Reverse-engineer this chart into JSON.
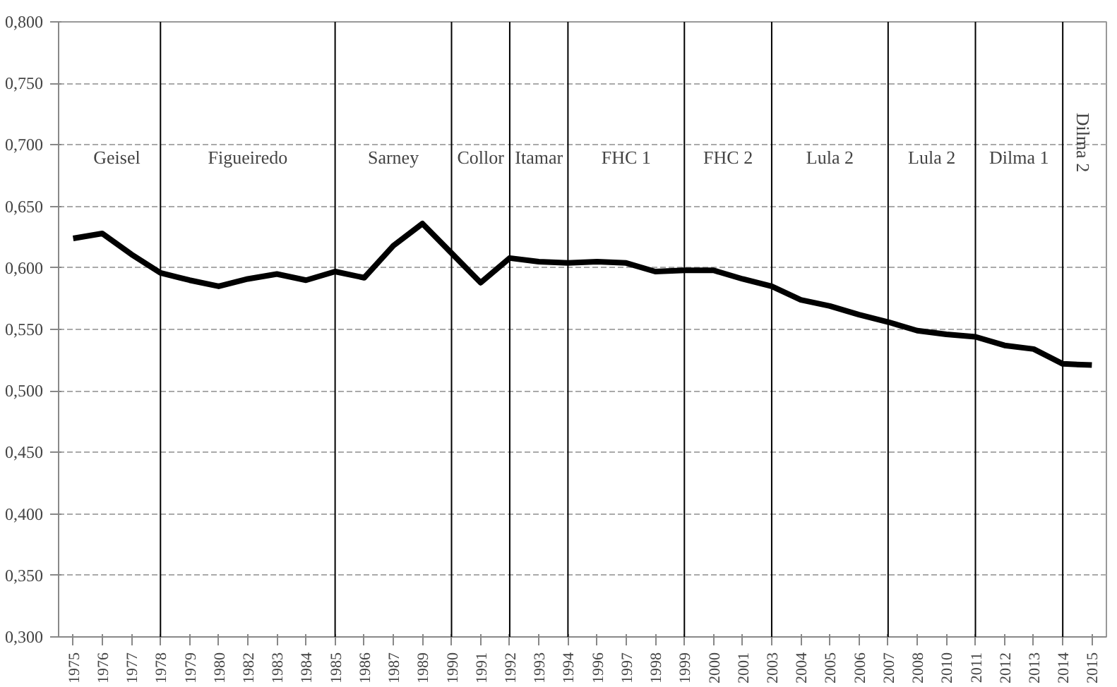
{
  "chart_data": {
    "type": "line",
    "categories": [
      "1975",
      "1976",
      "1977",
      "1978",
      "1979",
      "1980",
      "1982",
      "1983",
      "1984",
      "1985",
      "1986",
      "1987",
      "1989",
      "1990",
      "1991",
      "1992",
      "1993",
      "1994",
      "1996",
      "1997",
      "1998",
      "1999",
      "2000",
      "2001",
      "2003",
      "2004",
      "2005",
      "2006",
      "2007",
      "2008",
      "2010",
      "2011",
      "2012",
      "2013",
      "2014",
      "2015"
    ],
    "series": [
      {
        "color": "#000000",
        "values": [
          0.624,
          0.628,
          0.611,
          0.596,
          0.59,
          0.585,
          0.591,
          0.595,
          0.59,
          0.597,
          0.592,
          0.618,
          0.636,
          0.612,
          0.588,
          0.608,
          0.605,
          0.604,
          0.605,
          0.604,
          0.597,
          0.598,
          0.598,
          0.591,
          0.585,
          0.574,
          0.569,
          0.562,
          0.556,
          0.549,
          0.546,
          0.544,
          0.537,
          0.534,
          0.522,
          0.521
        ]
      }
    ],
    "ylim": [
      0.3,
      0.8
    ],
    "yticks": [
      {
        "value": 0.3,
        "label": "0,300"
      },
      {
        "value": 0.35,
        "label": "0,350"
      },
      {
        "value": 0.4,
        "label": "0,400"
      },
      {
        "value": 0.45,
        "label": "0,450"
      },
      {
        "value": 0.5,
        "label": "0,500"
      },
      {
        "value": 0.55,
        "label": "0,550"
      },
      {
        "value": 0.6,
        "label": "0,600"
      },
      {
        "value": 0.65,
        "label": "0,650"
      },
      {
        "value": 0.7,
        "label": "0,700"
      },
      {
        "value": 0.75,
        "label": "0,750"
      },
      {
        "value": 0.8,
        "label": "0,800"
      }
    ],
    "grid": "y",
    "marker": "none",
    "line_style": "solid",
    "ref_lines": [
      {
        "axis": "x",
        "value": "1978",
        "color": "#000000"
      },
      {
        "axis": "x",
        "value": "1985",
        "color": "#000000"
      },
      {
        "axis": "x",
        "value": "1990",
        "color": "#000000"
      },
      {
        "axis": "x",
        "value": "1992",
        "color": "#000000"
      },
      {
        "axis": "x",
        "value": "1994",
        "color": "#000000"
      },
      {
        "axis": "x",
        "value": "1999",
        "color": "#000000"
      },
      {
        "axis": "x",
        "value": "2003",
        "color": "#000000"
      },
      {
        "axis": "x",
        "value": "2007",
        "color": "#000000"
      },
      {
        "axis": "x",
        "value": "2011",
        "color": "#000000"
      },
      {
        "axis": "x",
        "value": "2014",
        "color": "#000000"
      }
    ],
    "annotations": [
      "Geisel",
      "Figueiredo",
      "Sarney",
      "Collor",
      "Itamar",
      "FHC 1",
      "FHC 2",
      "Lula 2",
      "Lula 2",
      "Dilma 1",
      "Dilma 2"
    ]
  }
}
